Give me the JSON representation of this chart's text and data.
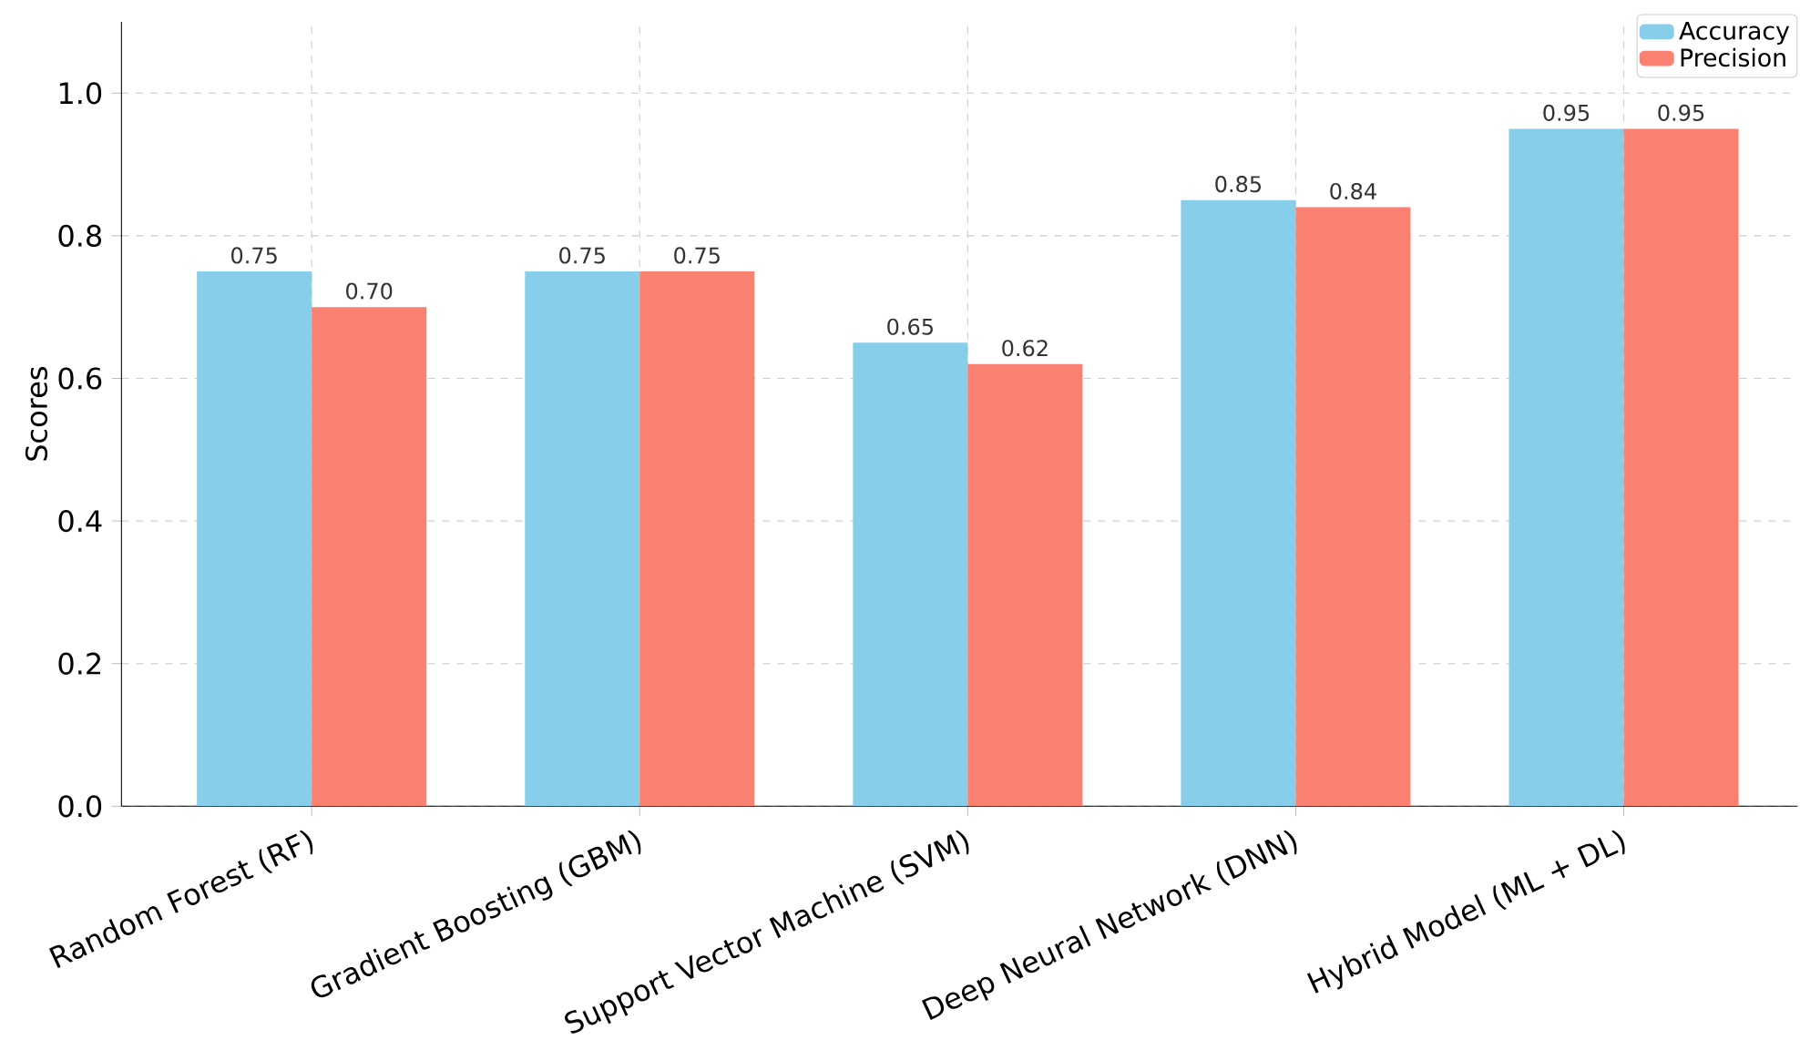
{
  "chart_data": {
    "type": "bar",
    "ylabel": "Scores",
    "categories": [
      "Random Forest (RF)",
      "Gradient Boosting (GBM)",
      "Support Vector Machine (SVM)",
      "Deep Neural Network (DNN)",
      "Hybrid Model (ML + DL)"
    ],
    "series": [
      {
        "name": "Accuracy",
        "color": "#87ceeb",
        "values": [
          0.75,
          0.75,
          0.65,
          0.85,
          0.95
        ],
        "value_labels": [
          "0.75",
          "0.75",
          "0.65",
          "0.85",
          "0.95"
        ]
      },
      {
        "name": "Precision",
        "color": "#fa8072",
        "values": [
          0.7,
          0.75,
          0.62,
          0.84,
          0.95
        ],
        "value_labels": [
          "0.70",
          "0.75",
          "0.62",
          "0.84",
          "0.95"
        ]
      }
    ],
    "ylim": [
      0,
      1.1
    ],
    "yticks": [
      {
        "value": 0,
        "label": "0.0"
      },
      {
        "value": 0.2,
        "label": "0.2"
      },
      {
        "value": 0.4,
        "label": "0.4"
      },
      {
        "value": 0.6,
        "label": "0.6"
      },
      {
        "value": 0.8,
        "label": "0.8"
      },
      {
        "value": 1.0,
        "label": "1.0"
      }
    ],
    "grid": true,
    "legend": "top right"
  }
}
